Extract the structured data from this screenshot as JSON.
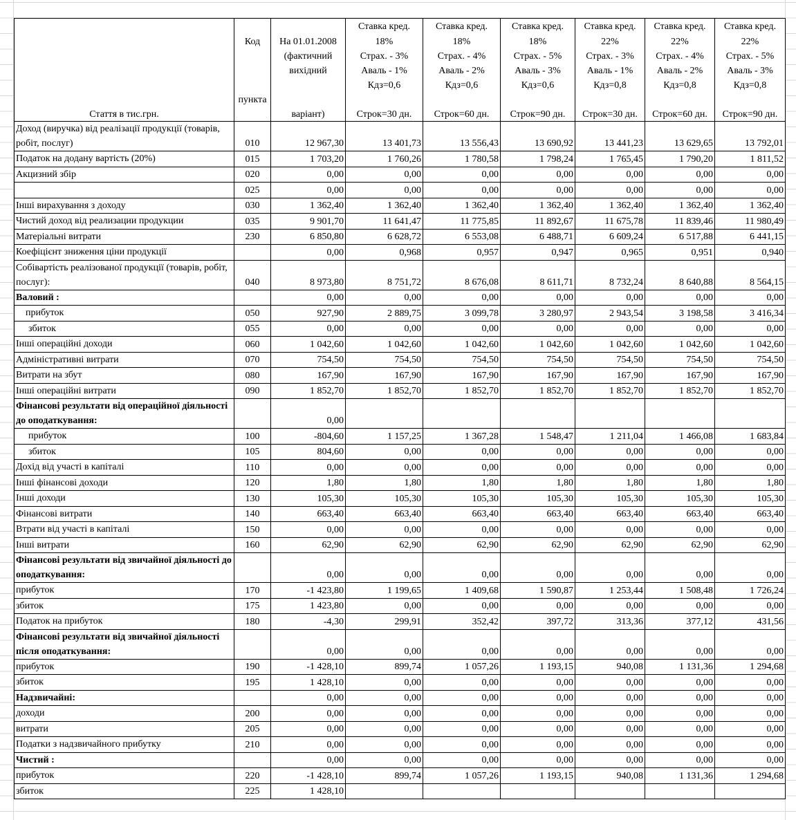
{
  "table": {
    "header": [
      {
        "lines": [
          "Стаття в тис.грн."
        ]
      },
      {
        "lines": [
          "Код",
          "пункта"
        ]
      },
      {
        "lines": [
          "На 01.01.2008",
          "(фактичний",
          "вихідний",
          "варіант)"
        ]
      },
      {
        "lines": [
          "Ставка кред.",
          "18%",
          "Страх. - 3%",
          "Аваль - 1%",
          "Кдз=0,6",
          "Строк=30 дн."
        ]
      },
      {
        "lines": [
          "Ставка кред.",
          "18%",
          "Страх. - 4%",
          "Аваль - 2%",
          "Кдз=0,6",
          "Строк=60 дн."
        ]
      },
      {
        "lines": [
          "Ставка кред.",
          "18%",
          "Страх. - 5%",
          "Аваль - 3%",
          "Кдз=0,6",
          "Строк=90 дн."
        ]
      },
      {
        "lines": [
          "Ставка кред.",
          "22%",
          "Страх. - 3%",
          "Аваль - 1%",
          "Кдз=0,8",
          "Строк=30 дн."
        ]
      },
      {
        "lines": [
          "Ставка кред.",
          "22%",
          "Страх. - 4%",
          "Аваль - 2%",
          "Кдз=0,8",
          "Строк=60 дн."
        ]
      },
      {
        "lines": [
          "Ставка кред.",
          "22%",
          "Страх. - 5%",
          "Аваль - 3%",
          "Кдз=0,8",
          "Строк=90 дн."
        ]
      }
    ],
    "rows": [
      {
        "label": "Доход (виручка) від реалізації продукції (товарів, робіт, послуг)",
        "code": "010",
        "values": [
          "12 967,30",
          "13 401,73",
          "13 556,43",
          "13 690,92",
          "13 441,23",
          "13 629,65",
          "13 792,01"
        ]
      },
      {
        "label": "Податок на додану вартість (20%)",
        "code": "015",
        "values": [
          "1 703,20",
          "1 760,26",
          "1 780,58",
          "1 798,24",
          "1 765,45",
          "1 790,20",
          "1 811,52"
        ]
      },
      {
        "label": "Акцизний збір",
        "code": "020",
        "values": [
          "0,00",
          "0,00",
          "0,00",
          "0,00",
          "0,00",
          "0,00",
          "0,00"
        ]
      },
      {
        "label": null,
        "code": "025",
        "values": [
          "0,00",
          "0,00",
          "0,00",
          "0,00",
          "0,00",
          "0,00",
          "0,00"
        ]
      },
      {
        "label": "Інші вирахування з доходу",
        "code": "030",
        "values": [
          "1 362,40",
          "1 362,40",
          "1 362,40",
          "1 362,40",
          "1 362,40",
          "1 362,40",
          "1 362,40"
        ]
      },
      {
        "label": "Чистий доход  від реализации продукции",
        "code": "035",
        "values": [
          "9 901,70",
          "11 641,47",
          "11 775,85",
          "11 892,67",
          "11 675,78",
          "11 839,46",
          "11 980,49"
        ]
      },
      {
        "label": "Матеріальні витрати",
        "code": "230",
        "values": [
          "6 850,80",
          "6 628,72",
          "6 553,08",
          "6 488,71",
          "6 609,24",
          "6 517,88",
          "6 441,15"
        ]
      },
      {
        "label": "Коефіцієнт зниження ціни продукції",
        "code": null,
        "values": [
          "0,00",
          "0,968",
          "0,957",
          "0,947",
          "0,965",
          "0,951",
          "0,940"
        ]
      },
      {
        "label": "Собівартість реалізованої продукції (товарів, робіт, послуг):",
        "code": "040",
        "values": [
          "8 973,80",
          "8 751,72",
          "8 676,08",
          "8 611,71",
          "8 732,24",
          "8 640,88",
          "8 564,15"
        ]
      },
      {
        "label": "Валовий :",
        "style": "bold",
        "code": null,
        "values": [
          "0,00",
          "0,00",
          "0,00",
          "0,00",
          "0,00",
          "0,00",
          "0,00"
        ]
      },
      {
        "label": "прибуток",
        "level": 1,
        "code": "050",
        "values": [
          "927,90",
          "2 889,75",
          "3 099,78",
          "3 280,97",
          "2 943,54",
          "3 198,58",
          "3 416,34"
        ]
      },
      {
        "label": "збиток",
        "level": 2,
        "code": "055",
        "values": [
          "0,00",
          "0,00",
          "0,00",
          "0,00",
          "0,00",
          "0,00",
          "0,00"
        ]
      },
      {
        "label": "Інші операційні доходи",
        "code": "060",
        "values": [
          "1 042,60",
          "1 042,60",
          "1 042,60",
          "1 042,60",
          "1 042,60",
          "1 042,60",
          "1 042,60"
        ]
      },
      {
        "label": "Адміністративні витрати",
        "code": "070",
        "values": [
          "754,50",
          "754,50",
          "754,50",
          "754,50",
          "754,50",
          "754,50",
          "754,50"
        ]
      },
      {
        "label": "Витрати на збут",
        "code": "080",
        "values": [
          "167,90",
          "167,90",
          "167,90",
          "167,90",
          "167,90",
          "167,90",
          "167,90"
        ]
      },
      {
        "label": "Інші операційні витрати",
        "code": "090",
        "values": [
          "1 852,70",
          "1 852,70",
          "1 852,70",
          "1 852,70",
          "1 852,70",
          "1 852,70",
          "1 852,70"
        ]
      },
      {
        "label": "Фінансові результати від операційної діяльності до оподаткування:",
        "style": "bold",
        "code": null,
        "values": [
          "0,00",
          null,
          null,
          null,
          null,
          null,
          null
        ]
      },
      {
        "label": "прибуток",
        "level": 2,
        "code": "100",
        "values": [
          "-804,60",
          "1 157,25",
          "1 367,28",
          "1 548,47",
          "1 211,04",
          "1 466,08",
          "1 683,84"
        ]
      },
      {
        "label": "збиток",
        "level": 2,
        "code": "105",
        "values": [
          "804,60",
          "0,00",
          "0,00",
          "0,00",
          "0,00",
          "0,00",
          "0,00"
        ]
      },
      {
        "label": "Дохід від участі в капіталі",
        "code": "110",
        "values": [
          "0,00",
          "0,00",
          "0,00",
          "0,00",
          "0,00",
          "0,00",
          "0,00"
        ]
      },
      {
        "label": "Інші фінансові доходи",
        "code": "120",
        "values": [
          "1,80",
          "1,80",
          "1,80",
          "1,80",
          "1,80",
          "1,80",
          "1,80"
        ]
      },
      {
        "label": "Інші доходи",
        "code": "130",
        "values": [
          "105,30",
          "105,30",
          "105,30",
          "105,30",
          "105,30",
          "105,30",
          "105,30"
        ]
      },
      {
        "label": "Фінансові витрати",
        "code": "140",
        "values": [
          "663,40",
          "663,40",
          "663,40",
          "663,40",
          "663,40",
          "663,40",
          "663,40"
        ]
      },
      {
        "label": "Втрати від участі в капіталі",
        "code": "150",
        "values": [
          "0,00",
          "0,00",
          "0,00",
          "0,00",
          "0,00",
          "0,00",
          "0,00"
        ]
      },
      {
        "label": "Інші витрати",
        "code": "160",
        "values": [
          "62,90",
          "62,90",
          "62,90",
          "62,90",
          "62,90",
          "62,90",
          "62,90"
        ]
      },
      {
        "label": "Фінансові результати від звичайної діяльності до оподаткування:",
        "style": "bold",
        "code": null,
        "values": [
          "0,00",
          "0,00",
          "0,00",
          "0,00",
          "0,00",
          "0,00",
          "0,00"
        ]
      },
      {
        "label": "прибуток",
        "code": "170",
        "values": [
          "-1 423,80",
          "1 199,65",
          "1 409,68",
          "1 590,87",
          "1 253,44",
          "1 508,48",
          "1 726,24"
        ]
      },
      {
        "label": "збиток",
        "code": "175",
        "values": [
          "1 423,80",
          "0,00",
          "0,00",
          "0,00",
          "0,00",
          "0,00",
          "0,00"
        ]
      },
      {
        "label": "Податок на прибуток",
        "code": "180",
        "values": [
          "-4,30",
          "299,91",
          "352,42",
          "397,72",
          "313,36",
          "377,12",
          "431,56"
        ]
      },
      {
        "label": "Фінансові результати від звичайної діяльності після оподаткування:",
        "style": "bold",
        "code": null,
        "values": [
          "0,00",
          "0,00",
          "0,00",
          "0,00",
          "0,00",
          "0,00",
          "0,00"
        ]
      },
      {
        "label": "прибуток",
        "code": "190",
        "values": [
          "-1 428,10",
          "899,74",
          "1 057,26",
          "1 193,15",
          "940,08",
          "1 131,36",
          "1 294,68"
        ]
      },
      {
        "label": "збиток",
        "code": "195",
        "values": [
          "1 428,10",
          "0,00",
          "0,00",
          "0,00",
          "0,00",
          "0,00",
          "0,00"
        ]
      },
      {
        "label": "Надзвичайні:",
        "style": "bold",
        "code": null,
        "values": [
          "0,00",
          "0,00",
          "0,00",
          "0,00",
          "0,00",
          "0,00",
          "0,00"
        ]
      },
      {
        "label": "доходи",
        "code": "200",
        "values": [
          "0,00",
          "0,00",
          "0,00",
          "0,00",
          "0,00",
          "0,00",
          "0,00"
        ]
      },
      {
        "label": "витрати",
        "code": "205",
        "values": [
          "0,00",
          "0,00",
          "0,00",
          "0,00",
          "0,00",
          "0,00",
          "0,00"
        ]
      },
      {
        "label": "Податки з надзвичайного прибутку",
        "code": "210",
        "values": [
          "0,00",
          "0,00",
          "0,00",
          "0,00",
          "0,00",
          "0,00",
          "0,00"
        ]
      },
      {
        "label": "Чистий :",
        "style": "bold",
        "code": null,
        "values": [
          "0,00",
          "0,00",
          "0,00",
          "0,00",
          "0,00",
          "0,00",
          "0,00"
        ]
      },
      {
        "label": "прибуток",
        "code": "220",
        "values": [
          "-1 428,10",
          "899,74",
          "1 057,26",
          "1 193,15",
          "940,08",
          "1 131,36",
          "1 294,68"
        ]
      },
      {
        "label": "збиток",
        "code": "225",
        "values": [
          "1 428,10",
          null,
          null,
          null,
          null,
          null,
          null
        ]
      }
    ]
  }
}
